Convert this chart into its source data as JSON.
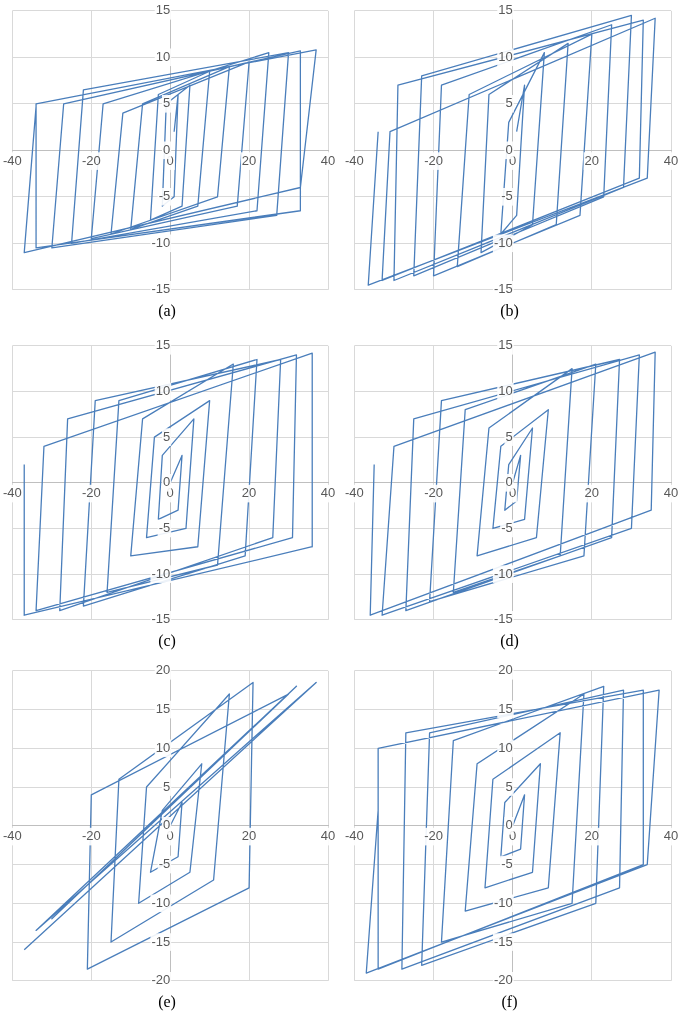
{
  "chart_data": [
    {
      "type": "line",
      "title": "(a)",
      "color": "#4a7ebb",
      "xlim": [
        -40,
        40
      ],
      "xticks": [
        -40,
        -20,
        0,
        20,
        40
      ],
      "ylim": [
        -15,
        15
      ],
      "yticks": [
        -15,
        -10,
        -5,
        0,
        5,
        10,
        15
      ],
      "grid": true,
      "x": [
        1,
        2,
        1,
        -2,
        -1,
        5,
        3,
        -5,
        -3,
        10,
        7,
        -10,
        -7,
        15,
        12,
        -15,
        -12,
        20,
        17,
        -20,
        -17,
        25,
        22,
        -25,
        -22,
        30,
        27,
        -30,
        -27,
        33,
        33,
        -34,
        -34,
        37,
        33,
        -37,
        -34
      ],
      "values": [
        2,
        6,
        -5,
        -6,
        5,
        7,
        -6,
        -7.5,
        6,
        8.5,
        -6,
        -8.5,
        5,
        9,
        -5,
        -9,
        4,
        9.5,
        -6,
        -9.5,
        5,
        10.5,
        -6.5,
        -10,
        6.5,
        10.5,
        -7,
        -10.5,
        5,
        10.7,
        -6.5,
        -10.5,
        5,
        10.8,
        -4,
        -11,
        4.7
      ]
    },
    {
      "type": "line",
      "title": "(b)",
      "color": "#4a7ebb",
      "xlim": [
        -40,
        40
      ],
      "xticks": [
        -40,
        -20,
        0,
        20,
        40
      ],
      "ylim": [
        -15,
        15
      ],
      "yticks": [
        -15,
        -10,
        -5,
        0,
        5,
        10,
        15
      ],
      "grid": true,
      "x": [
        1,
        3,
        1,
        -3,
        -1,
        8,
        5,
        -8,
        -6,
        14,
        11,
        -14,
        -11,
        20,
        17,
        -20,
        -18,
        25,
        23,
        -25,
        -23,
        30,
        28,
        -30,
        -29,
        33,
        32,
        -33,
        -31,
        36,
        34,
        -36.5,
        -34
      ],
      "values": [
        2,
        7,
        -7,
        -9,
        3,
        10.5,
        -8,
        -11,
        6,
        11.5,
        -8,
        -12.5,
        6,
        12.5,
        -7,
        -13.5,
        7,
        13.5,
        -5,
        -13.5,
        8,
        14.5,
        -4,
        -14,
        7,
        14,
        -3,
        -14,
        2,
        14.2,
        -3,
        -14.5,
        2
      ]
    },
    {
      "type": "line",
      "title": "(c)",
      "color": "#4a7ebb",
      "xlim": [
        -40,
        40
      ],
      "xticks": [
        -40,
        -20,
        0,
        20,
        40
      ],
      "ylim": [
        -15,
        15
      ],
      "yticks": [
        -15,
        -10,
        -5,
        0,
        5,
        10,
        15
      ],
      "grid": true,
      "x": [
        0,
        3,
        2,
        -3,
        -2,
        6,
        4,
        -6,
        -4,
        10,
        7,
        -10,
        -7,
        16,
        12,
        -16,
        -13,
        22,
        19,
        -22,
        -19,
        28,
        26,
        -28,
        -26,
        32,
        31,
        -34,
        -32,
        36,
        36,
        -37,
        -37
      ],
      "values": [
        0,
        3,
        -3,
        -4,
        3,
        7,
        -5,
        -6,
        5,
        9,
        -7,
        -8,
        7,
        13,
        -9,
        -12,
        9,
        13.5,
        -8,
        -13.5,
        9,
        13.5,
        -6,
        -14,
        7,
        14,
        -6,
        -14,
        4,
        14.2,
        -7,
        -14.5,
        2
      ]
    },
    {
      "type": "line",
      "title": "(d)",
      "color": "#4a7ebb",
      "xlim": [
        -40,
        40
      ],
      "xticks": [
        -40,
        -20,
        0,
        20,
        40
      ],
      "ylim": [
        -15,
        15
      ],
      "yticks": [
        -15,
        -10,
        -5,
        0,
        5,
        10,
        15
      ],
      "grid": true,
      "x": [
        0,
        2,
        1,
        -2,
        -1,
        5,
        3,
        -5,
        -3,
        9,
        6,
        -9,
        -6,
        15,
        12,
        -15,
        -12,
        21,
        18,
        -21,
        -18,
        27,
        25,
        -27,
        -25,
        32,
        30,
        -33,
        -30,
        36,
        35,
        -36,
        -35
      ],
      "values": [
        0,
        3,
        -2,
        -3,
        2,
        6,
        -4,
        -5,
        4,
        8,
        -6,
        -8,
        6,
        12.5,
        -8,
        -12,
        8,
        13,
        -8,
        -13,
        9,
        13.5,
        -6,
        -14,
        7,
        14,
        -5,
        -14.5,
        4,
        14.3,
        -3,
        -14.5,
        2
      ]
    },
    {
      "type": "line",
      "title": "(e)",
      "color": "#4a7ebb",
      "xlim": [
        -40,
        40
      ],
      "xticks": [
        -40,
        -20,
        0,
        20,
        40
      ],
      "ylim": [
        -20,
        20
      ],
      "yticks": [
        -20,
        -15,
        -10,
        -5,
        0,
        5,
        10,
        15,
        20
      ],
      "grid": true,
      "x": [
        0,
        3,
        2,
        -5,
        -2,
        8,
        5,
        -8,
        -6,
        15,
        11,
        -15,
        -13,
        21,
        20,
        -21,
        -20,
        30,
        -30,
        32,
        -34,
        37,
        -37
      ],
      "values": [
        0,
        3,
        -4,
        -6,
        2,
        8,
        -6,
        -10,
        5,
        17,
        -7,
        -15,
        6,
        18.5,
        -8,
        -18.5,
        4,
        17,
        -12,
        18,
        -13.5,
        18.5,
        -16
      ]
    },
    {
      "type": "line",
      "title": "(f)",
      "color": "#4a7ebb",
      "xlim": [
        -40,
        40
      ],
      "xticks": [
        -40,
        -20,
        0,
        20,
        40
      ],
      "ylim": [
        -20,
        20
      ],
      "yticks": [
        -20,
        -15,
        -10,
        -5,
        0,
        5,
        10,
        15,
        20
      ],
      "grid": true,
      "x": [
        0,
        3,
        2,
        -3,
        -2,
        7,
        5,
        -7,
        -5,
        12,
        9,
        -12,
        -9,
        18,
        15,
        -18,
        -15,
        23,
        21,
        -23,
        -21,
        28,
        27,
        -28,
        -27,
        33,
        33,
        -34,
        -34,
        37,
        34,
        -37,
        -34
      ],
      "values": [
        0,
        4,
        -3,
        -4,
        3,
        8,
        -6,
        -8,
        6,
        12,
        -8,
        -11,
        8,
        17,
        -10,
        -15,
        11,
        18,
        -10,
        -18,
        12,
        17.5,
        -8,
        -18.5,
        12,
        17.5,
        -5,
        -18.5,
        10,
        17.5,
        -5,
        -19,
        2
      ]
    }
  ]
}
